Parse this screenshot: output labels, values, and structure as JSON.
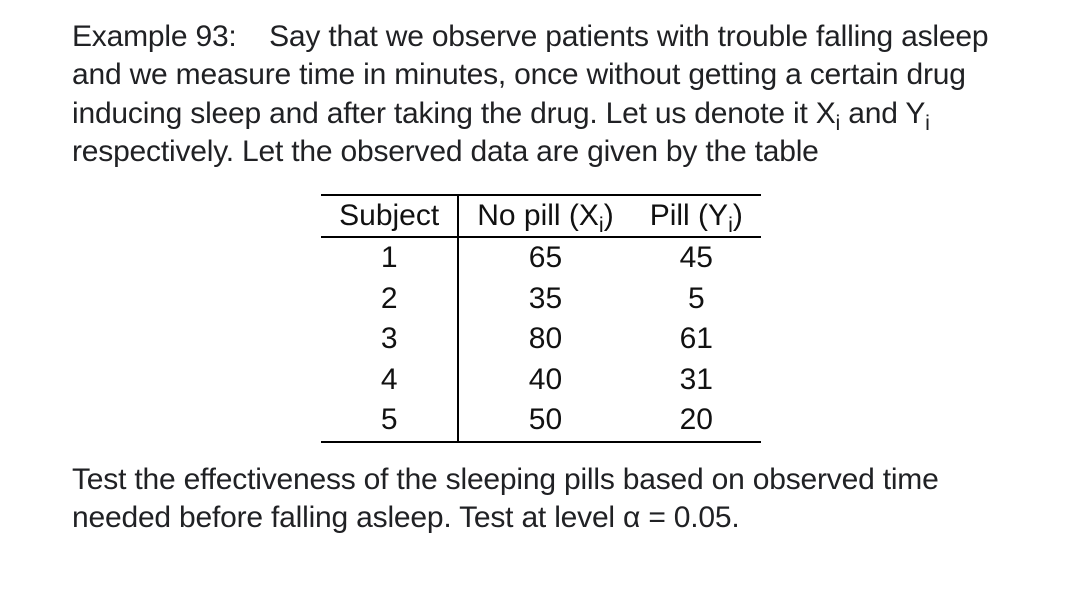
{
  "example": {
    "label": "Example 93:",
    "intro_p1": "Say that we observe patients with trouble falling asleep and we measure time in minutes, once without getting a certain drug inducing sleep and after taking the drug. Let us denote it X",
    "sub1": "i",
    "intro_p2": " and Y",
    "sub2": "i",
    "intro_p3": " respectively. Let the observed data are given by the table"
  },
  "table": {
    "col_subject": "Subject",
    "col_nopill_pre": "No pill (X",
    "col_nopill_sub": "i",
    "col_nopill_post": ")",
    "col_pill_pre": "Pill (Y",
    "col_pill_sub": "i",
    "col_pill_post": ")",
    "rows": [
      {
        "subject": "1",
        "x": "65",
        "y": "45"
      },
      {
        "subject": "2",
        "x": "35",
        "y": "5"
      },
      {
        "subject": "3",
        "x": "80",
        "y": "61"
      },
      {
        "subject": "4",
        "x": "40",
        "y": "31"
      },
      {
        "subject": "5",
        "x": "50",
        "y": "20"
      }
    ]
  },
  "question": {
    "text_pre": "Test the effectiveness of the sleeping pills based on observed time needed before falling asleep. Test at level α = ",
    "alpha": "0.05",
    "text_post": "."
  }
}
